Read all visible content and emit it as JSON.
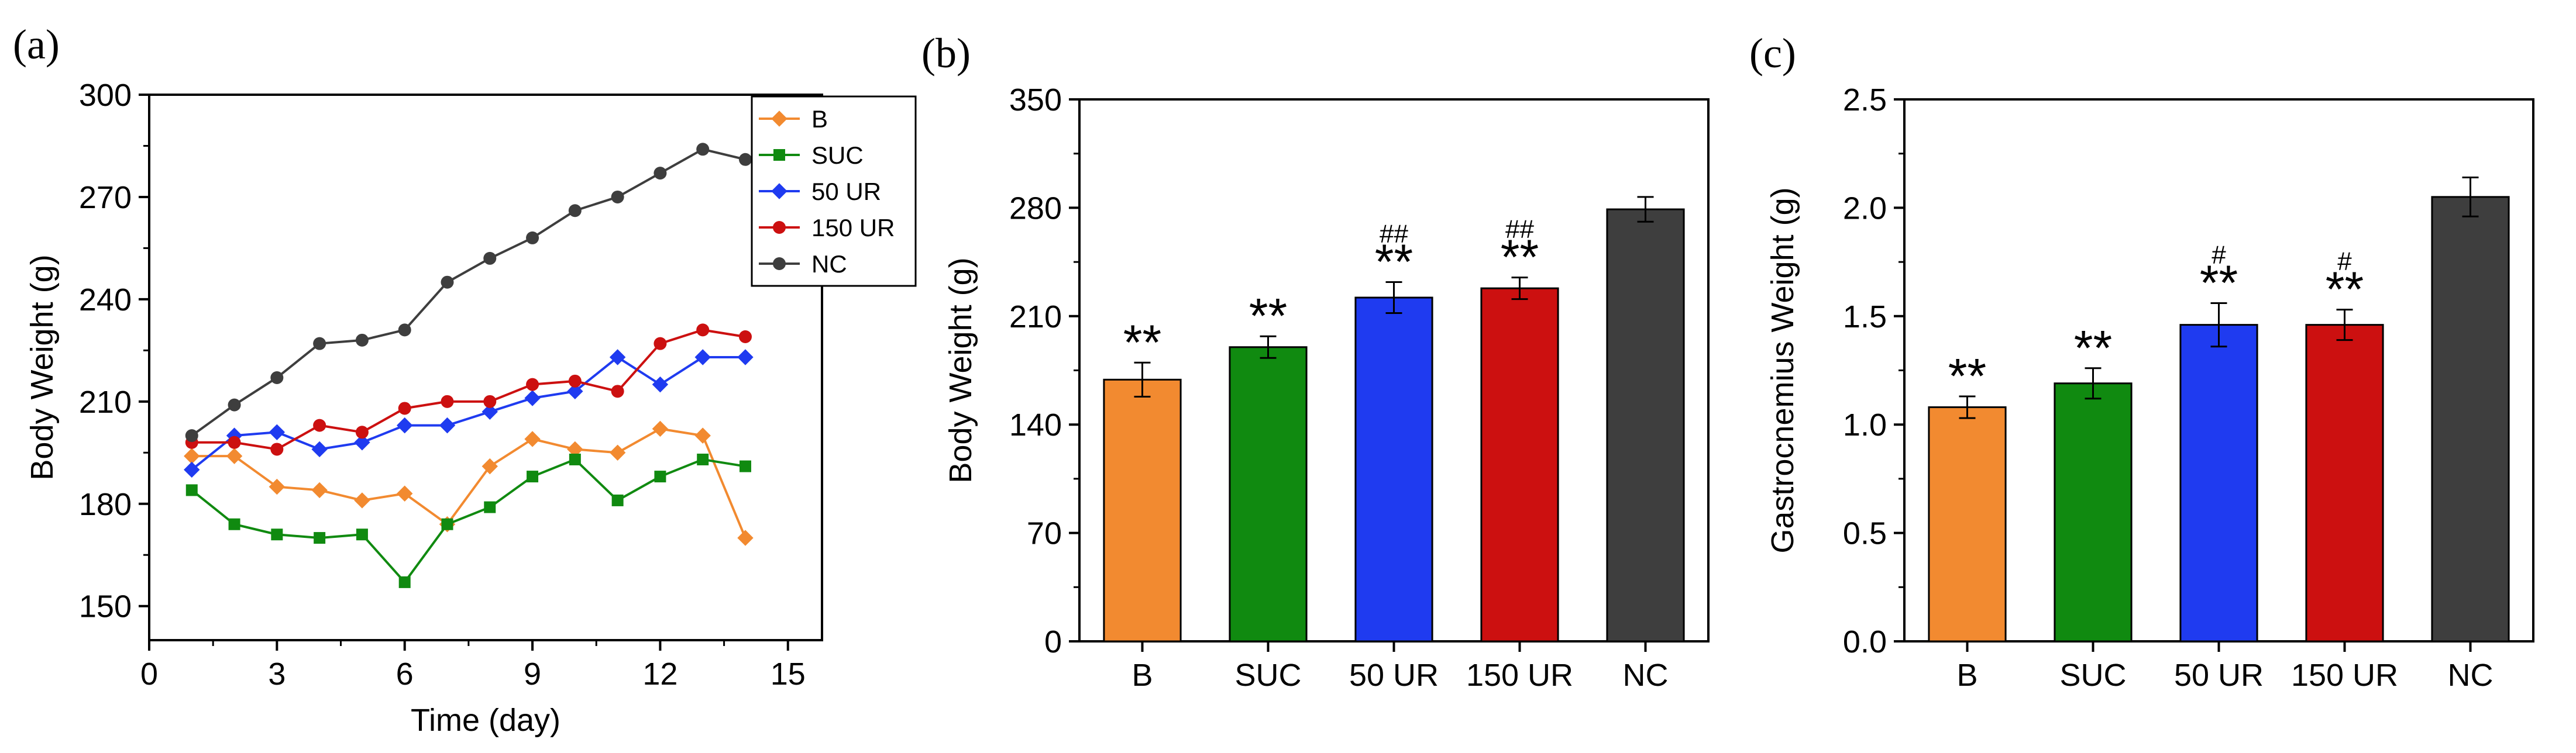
{
  "panels": [
    {
      "label": "(a)",
      "chart_data": {
        "type": "line",
        "xlabel": "Time (day)",
        "ylabel": "Body Weight (g)",
        "xlim": [
          0,
          15.8
        ],
        "ylim": [
          140,
          300
        ],
        "xticks": [
          0,
          3,
          6,
          9,
          12,
          15
        ],
        "yticks": [
          150,
          180,
          210,
          240,
          270,
          300
        ],
        "legend_position": "top-right",
        "x": [
          1,
          2,
          3,
          4,
          5,
          6,
          7,
          8,
          9,
          10,
          11,
          12,
          13,
          14
        ],
        "series": [
          {
            "name": "B",
            "color": "#F28A30",
            "marker": "diamond",
            "values": [
              194,
              194,
              185,
              184,
              181,
              183,
              174,
              191,
              199,
              196,
              195,
              202,
              200,
              170
            ]
          },
          {
            "name": "SUC",
            "color": "#108A10",
            "marker": "square",
            "values": [
              184,
              174,
              171,
              170,
              171,
              157,
              174,
              179,
              188,
              193,
              181,
              188,
              193,
              191
            ]
          },
          {
            "name": "50 UR",
            "color": "#1F3BF0",
            "marker": "diamond",
            "values": [
              190,
              200,
              201,
              196,
              198,
              203,
              203,
              207,
              211,
              213,
              223,
              215,
              223,
              223
            ]
          },
          {
            "name": "150 UR",
            "color": "#CC1010",
            "marker": "circle",
            "values": [
              198,
              198,
              196,
              203,
              201,
              208,
              210,
              210,
              215,
              216,
              213,
              227,
              231,
              229
            ]
          },
          {
            "name": "NC",
            "color": "#3E3E3E",
            "marker": "circle",
            "values": [
              200,
              209,
              217,
              227,
              228,
              231,
              245,
              252,
              258,
              266,
              270,
              277,
              284,
              281
            ]
          }
        ]
      }
    },
    {
      "label": "(b)",
      "chart_data": {
        "type": "bar",
        "xlabel": "",
        "ylabel": "Body Weight (g)",
        "ylim": [
          0,
          350
        ],
        "yticks": [
          0,
          70,
          140,
          210,
          280,
          350
        ],
        "categories": [
          "B",
          "SUC",
          "50 UR",
          "150 UR",
          "NC"
        ],
        "values": [
          169,
          190,
          222,
          228,
          279
        ],
        "errors": [
          11,
          7,
          10,
          7,
          8
        ],
        "colors": [
          "#F28A30",
          "#108A10",
          "#1F3BF0",
          "#CC1010",
          "#3E3E3E"
        ],
        "annotations": [
          {
            "stars": "**",
            "hashes": ""
          },
          {
            "stars": "**",
            "hashes": ""
          },
          {
            "stars": "**",
            "hashes": "##"
          },
          {
            "stars": "**",
            "hashes": "##"
          },
          {
            "stars": "",
            "hashes": ""
          }
        ]
      }
    },
    {
      "label": "(c)",
      "chart_data": {
        "type": "bar",
        "xlabel": "",
        "ylabel": "Gastrocnemius Weight (g)",
        "ylim": [
          0,
          2.5
        ],
        "yticks": [
          0.0,
          0.5,
          1.0,
          1.5,
          2.0,
          2.5
        ],
        "tick_decimals": 1,
        "categories": [
          "B",
          "SUC",
          "50 UR",
          "150 UR",
          "NC"
        ],
        "values": [
          1.08,
          1.19,
          1.46,
          1.46,
          2.05
        ],
        "errors": [
          0.05,
          0.07,
          0.1,
          0.07,
          0.09
        ],
        "colors": [
          "#F28A30",
          "#108A10",
          "#1F3BF0",
          "#CC1010",
          "#3E3E3E"
        ],
        "annotations": [
          {
            "stars": "**",
            "hashes": ""
          },
          {
            "stars": "**",
            "hashes": ""
          },
          {
            "stars": "**",
            "hashes": "#"
          },
          {
            "stars": "**",
            "hashes": "#"
          },
          {
            "stars": "",
            "hashes": ""
          }
        ]
      }
    }
  ]
}
